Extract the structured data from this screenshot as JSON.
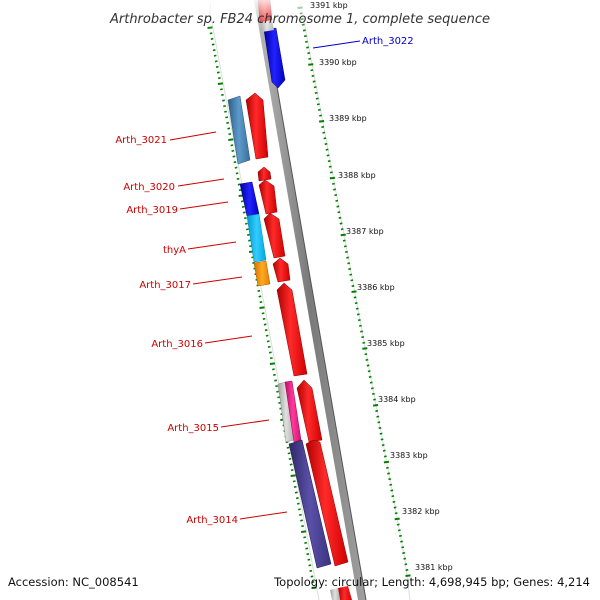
{
  "title": "Arthrobacter sp. FB24 chromosome 1, complete sequence",
  "accession": "Accession: NC_008541",
  "topology": "Topology: circular; Length: 4,698,945 bp; Genes: 4,214",
  "kbp_labels": [
    "3391 kbp",
    "3390 kbp",
    "3389 kbp",
    "3388 kbp",
    "3387 kbp",
    "3386 kbp",
    "3385 kbp",
    "3384 kbp",
    "3383 kbp",
    "3382 kbp",
    "3381 kbp"
  ],
  "gene_labels": [
    {
      "text": "Arth_3022",
      "color": "#0000cc"
    },
    {
      "text": "Arth_3021",
      "color": "#cc0000"
    },
    {
      "text": "Arth_3020",
      "color": "#cc0000"
    },
    {
      "text": "Arth_3019",
      "color": "#cc0000"
    },
    {
      "text": "thyA",
      "color": "#cc0000"
    },
    {
      "text": "Arth_3017",
      "color": "#cc0000"
    },
    {
      "text": "Arth_3016",
      "color": "#cc0000"
    },
    {
      "text": "Arth_3015",
      "color": "#cc0000"
    },
    {
      "text": "Arth_3014",
      "color": "#cc0000"
    }
  ],
  "colors": {
    "cds": "#ff0000",
    "blue": "#0000ee",
    "steelblue": "#4682b4",
    "deepskyblue": "#00bfff",
    "orange": "#ff9900",
    "magenta": "#ff1493",
    "slate": "#483d8b",
    "silver": "#c0c0c0",
    "backbone": "#888888",
    "ticks": "#008000"
  }
}
